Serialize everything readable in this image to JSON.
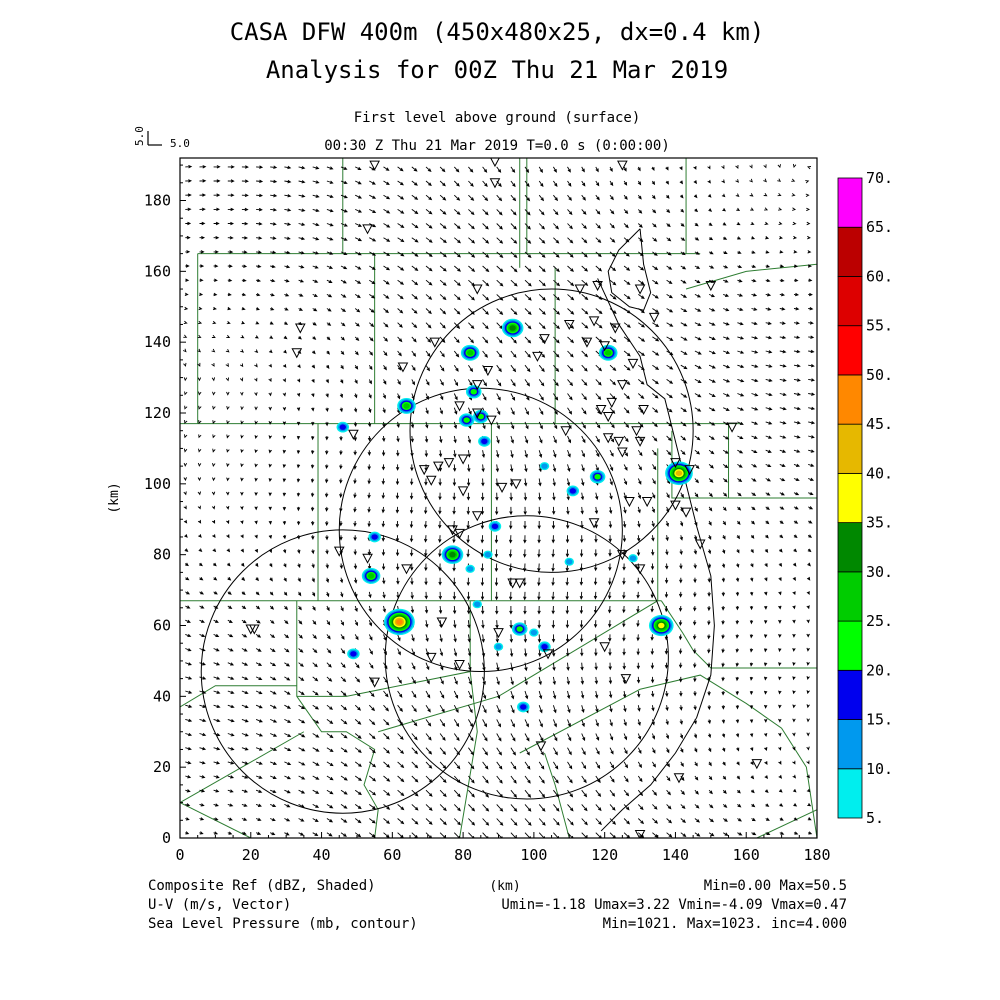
{
  "chart_data": {
    "type": "heatmap",
    "title": "CASA DFW 400m (450x480x25, dx=0.4 km)",
    "subtitle": "Analysis for 00Z Thu 21 Mar 2019",
    "level_label": "First level above ground (surface)",
    "time_label": "00:30 Z Thu 21 Mar 2019    T=0.0 s (0:00:00)",
    "vector_key": {
      "left": "5.0",
      "right": "5.0"
    },
    "xlabel": "(km)",
    "ylabel": "(km)",
    "xlim": [
      0,
      180
    ],
    "ylim": [
      0,
      192
    ],
    "xticks": [
      "0",
      "20",
      "40",
      "60",
      "80",
      "100",
      "120",
      "140",
      "160",
      "180"
    ],
    "yticks": [
      "0",
      "20",
      "40",
      "60",
      "80",
      "100",
      "120",
      "140",
      "160",
      "180"
    ],
    "xtick_values": [
      0,
      20,
      40,
      60,
      80,
      100,
      120,
      140,
      160,
      180
    ],
    "ytick_values": [
      0,
      20,
      40,
      60,
      80,
      100,
      120,
      140,
      160,
      180
    ],
    "colorbar": {
      "labels": [
        "5.",
        "10.",
        "15.",
        "20.",
        "25.",
        "30.",
        "35.",
        "40.",
        "45.",
        "50.",
        "55.",
        "60.",
        "65.",
        "70."
      ],
      "colors": [
        "#00eeee",
        "#0099ee",
        "#0000ee",
        "#00ff00",
        "#00cc00",
        "#008800",
        "#ffff00",
        "#e6b800",
        "#ff8800",
        "#ff0000",
        "#dd0000",
        "#bb0000",
        "#ff00ff"
      ]
    },
    "footer": {
      "left": [
        "Composite Ref (dBZ, Shaded)",
        "U-V (m/s, Vector)",
        "Sea Level Pressure (mb, contour)"
      ],
      "center": "(km)",
      "right": [
        "Min=0.00 Max=50.5",
        "Umin=-1.18 Umax=3.22 Vmin=-4.09 Vmax=0.47",
        "Min=1021. Max=1023. inc=4.000"
      ]
    },
    "radar_rings": [
      {
        "cx": 46,
        "cy": 47,
        "r": 40
      },
      {
        "cx": 85,
        "cy": 87,
        "r": 40
      },
      {
        "cx": 105,
        "cy": 115,
        "r": 40
      },
      {
        "cx": 98,
        "cy": 51,
        "r": 40
      }
    ],
    "echoes": [
      {
        "x": 94,
        "y": 144,
        "dbz": 30
      },
      {
        "x": 82,
        "y": 137,
        "dbz": 25
      },
      {
        "x": 121,
        "y": 137,
        "dbz": 25
      },
      {
        "x": 83,
        "y": 126,
        "dbz": 20
      },
      {
        "x": 64,
        "y": 122,
        "dbz": 25
      },
      {
        "x": 81,
        "y": 118,
        "dbz": 20
      },
      {
        "x": 85,
        "y": 119,
        "dbz": 20
      },
      {
        "x": 46,
        "y": 116,
        "dbz": 15
      },
      {
        "x": 86,
        "y": 112,
        "dbz": 15
      },
      {
        "x": 141,
        "y": 103,
        "dbz": 40
      },
      {
        "x": 118,
        "y": 102,
        "dbz": 20
      },
      {
        "x": 103,
        "y": 105,
        "dbz": 10
      },
      {
        "x": 111,
        "y": 98,
        "dbz": 15
      },
      {
        "x": 89,
        "y": 88,
        "dbz": 15
      },
      {
        "x": 55,
        "y": 85,
        "dbz": 15
      },
      {
        "x": 77,
        "y": 80,
        "dbz": 30
      },
      {
        "x": 87,
        "y": 80,
        "dbz": 10
      },
      {
        "x": 128,
        "y": 79,
        "dbz": 10
      },
      {
        "x": 110,
        "y": 78,
        "dbz": 10
      },
      {
        "x": 54,
        "y": 74,
        "dbz": 25
      },
      {
        "x": 82,
        "y": 76,
        "dbz": 10
      },
      {
        "x": 84,
        "y": 66,
        "dbz": 10
      },
      {
        "x": 62,
        "y": 61,
        "dbz": 45
      },
      {
        "x": 136,
        "y": 60,
        "dbz": 35
      },
      {
        "x": 96,
        "y": 59,
        "dbz": 20
      },
      {
        "x": 100,
        "y": 58,
        "dbz": 10
      },
      {
        "x": 103,
        "y": 54,
        "dbz": 15
      },
      {
        "x": 49,
        "y": 52,
        "dbz": 15
      },
      {
        "x": 90,
        "y": 54,
        "dbz": 10
      },
      {
        "x": 97,
        "y": 37,
        "dbz": 15
      }
    ],
    "pressure_contours": [
      [
        [
          130,
          172
        ],
        [
          124,
          166
        ],
        [
          121,
          160
        ],
        [
          122,
          154
        ],
        [
          127,
          150
        ],
        [
          131,
          149
        ],
        [
          133,
          154
        ],
        [
          131,
          162
        ],
        [
          130,
          172
        ]
      ],
      [
        [
          118,
          158
        ],
        [
          124,
          145
        ],
        [
          130,
          136
        ],
        [
          132,
          128
        ],
        [
          137,
          124
        ],
        [
          139,
          116
        ],
        [
          141,
          108
        ],
        [
          143,
          100
        ],
        [
          146,
          88
        ],
        [
          150,
          74
        ],
        [
          151,
          60
        ],
        [
          150,
          46
        ],
        [
          146,
          34
        ],
        [
          140,
          24
        ],
        [
          133,
          15
        ],
        [
          125,
          8
        ],
        [
          119,
          2
        ]
      ]
    ],
    "stations": [
      [
        55,
        190
      ],
      [
        89,
        191
      ],
      [
        89,
        185
      ],
      [
        125,
        190
      ],
      [
        53,
        172
      ],
      [
        34,
        144
      ],
      [
        33,
        137
      ],
      [
        84,
        155
      ],
      [
        113,
        155
      ],
      [
        118,
        156
      ],
      [
        130,
        155
      ],
      [
        134,
        147
      ],
      [
        110,
        145
      ],
      [
        117,
        146
      ],
      [
        123,
        144
      ],
      [
        63,
        133
      ],
      [
        72,
        140
      ],
      [
        87,
        132
      ],
      [
        103,
        141
      ],
      [
        115,
        140
      ],
      [
        120,
        139
      ],
      [
        128,
        134
      ],
      [
        125,
        128
      ],
      [
        84,
        128
      ],
      [
        79,
        122
      ],
      [
        84,
        120
      ],
      [
        88,
        118
      ],
      [
        122,
        123
      ],
      [
        119,
        121
      ],
      [
        121,
        119
      ],
      [
        131,
        121
      ],
      [
        49,
        114
      ],
      [
        109,
        115
      ],
      [
        121,
        113
      ],
      [
        124,
        112
      ],
      [
        129,
        115
      ],
      [
        130,
        112
      ],
      [
        69,
        104
      ],
      [
        71,
        101
      ],
      [
        73,
        105
      ],
      [
        76,
        106
      ],
      [
        80,
        107
      ],
      [
        140,
        106
      ],
      [
        144,
        104
      ],
      [
        80,
        98
      ],
      [
        91,
        99
      ],
      [
        95,
        100
      ],
      [
        127,
        95
      ],
      [
        132,
        95
      ],
      [
        140,
        94
      ],
      [
        143,
        92
      ],
      [
        117,
        89
      ],
      [
        84,
        91
      ],
      [
        77,
        87
      ],
      [
        79,
        86
      ],
      [
        147,
        83
      ],
      [
        45,
        81
      ],
      [
        53,
        79
      ],
      [
        125,
        80
      ],
      [
        64,
        76
      ],
      [
        130,
        76
      ],
      [
        94,
        72
      ],
      [
        96,
        72
      ],
      [
        21,
        59
      ],
      [
        20,
        59
      ],
      [
        74,
        61
      ],
      [
        90,
        58
      ],
      [
        120,
        54
      ],
      [
        104,
        52
      ],
      [
        71,
        51
      ],
      [
        79,
        49
      ],
      [
        55,
        44
      ],
      [
        126,
        45
      ],
      [
        102,
        26
      ],
      [
        141,
        17
      ],
      [
        163,
        21
      ],
      [
        130,
        1
      ],
      [
        125,
        109
      ],
      [
        101,
        136
      ],
      [
        150,
        156
      ],
      [
        156,
        116
      ]
    ],
    "county_lines": [
      [
        [
          0,
          117
        ],
        [
          159,
          117
        ]
      ],
      [
        [
          0,
          67
        ],
        [
          136,
          67
        ]
      ],
      [
        [
          5,
          165
        ],
        [
          147,
          165
        ]
      ],
      [
        [
          5,
          165
        ],
        [
          5,
          117
        ]
      ],
      [
        [
          55,
          165
        ],
        [
          55,
          117
        ]
      ],
      [
        [
          46,
          192
        ],
        [
          46,
          165
        ]
      ],
      [
        [
          96,
          192
        ],
        [
          96,
          161
        ]
      ],
      [
        [
          143,
          192
        ],
        [
          143,
          165
        ]
      ],
      [
        [
          143,
          155
        ],
        [
          160,
          160
        ],
        [
          180,
          162
        ]
      ],
      [
        [
          106,
          161
        ],
        [
          106,
          117
        ]
      ],
      [
        [
          155,
          117
        ],
        [
          155,
          96
        ],
        [
          180,
          96
        ]
      ],
      [
        [
          139,
          115
        ],
        [
          139,
          96
        ],
        [
          155,
          96
        ]
      ],
      [
        [
          98,
          192
        ],
        [
          98,
          165
        ]
      ],
      [
        [
          39,
          117
        ],
        [
          39,
          67
        ]
      ],
      [
        [
          88,
          117
        ],
        [
          88,
          67
        ]
      ],
      [
        [
          135,
          110
        ],
        [
          135,
          67
        ]
      ],
      [
        [
          0,
          67
        ],
        [
          0,
          0
        ]
      ],
      [
        [
          33,
          67
        ],
        [
          33,
          40
        ],
        [
          40,
          30
        ],
        [
          47,
          30
        ],
        [
          55,
          25
        ],
        [
          52,
          15
        ],
        [
          56,
          8
        ],
        [
          55,
          0
        ]
      ],
      [
        [
          0,
          37
        ],
        [
          10,
          43
        ],
        [
          33,
          43
        ]
      ],
      [
        [
          0,
          10
        ],
        [
          35,
          30
        ]
      ],
      [
        [
          0,
          10
        ],
        [
          20,
          0
        ]
      ],
      [
        [
          33,
          40
        ],
        [
          47,
          40
        ],
        [
          82,
          47
        ],
        [
          82,
          67
        ]
      ],
      [
        [
          82,
          47
        ],
        [
          84,
          30
        ],
        [
          79,
          0
        ]
      ],
      [
        [
          56,
          30
        ],
        [
          90,
          40
        ],
        [
          135,
          67
        ]
      ],
      [
        [
          96,
          24
        ],
        [
          130,
          42
        ],
        [
          147,
          46
        ],
        [
          160,
          38
        ],
        [
          170,
          31
        ],
        [
          177,
          20
        ],
        [
          180,
          0
        ]
      ],
      [
        [
          136,
          67
        ],
        [
          142,
          58
        ],
        [
          145,
          53
        ],
        [
          150,
          48
        ],
        [
          180,
          48
        ]
      ],
      [
        [
          163,
          0
        ],
        [
          180,
          8
        ]
      ],
      [
        [
          103,
          24
        ],
        [
          106,
          15
        ],
        [
          110,
          0
        ]
      ]
    ]
  }
}
